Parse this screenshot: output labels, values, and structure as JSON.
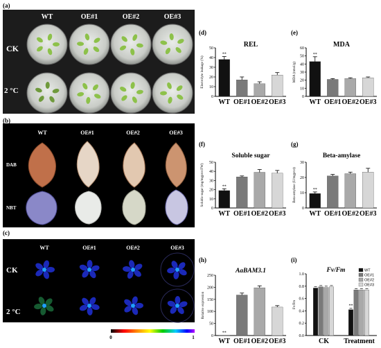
{
  "panels": {
    "a": {
      "label": "(a)",
      "columns": [
        "WT",
        "OE#1",
        "OE#2",
        "OE#3"
      ],
      "rows": [
        "CK",
        "2 °C"
      ]
    },
    "b": {
      "label": "(b)",
      "columns": [
        "WT",
        "OE#1",
        "OE#2",
        "OE#3"
      ],
      "rows": [
        "DAB",
        "NBT"
      ]
    },
    "c": {
      "label": "(c)",
      "columns": [
        "WT",
        "OE#1",
        "OE#2",
        "OE#3"
      ],
      "rows": [
        "CK",
        "2 °C"
      ],
      "colorbar": {
        "min": "0",
        "max": "1"
      }
    }
  },
  "colors": {
    "black": "#111111",
    "dark_gray": "#7a7a7a",
    "mid_gray": "#a9a9a9",
    "light_gray": "#d7d7d7"
  },
  "chart_data": [
    {
      "panel": "(d)",
      "type": "bar",
      "title": "REL",
      "ylabel": "Electrolyte leakage (%)",
      "categories": [
        "WT",
        "OE#1",
        "OE#2",
        "OE#3"
      ],
      "values": [
        38,
        17,
        13,
        22
      ],
      "errors": [
        3,
        3,
        2,
        2.5
      ],
      "annotations": [
        "**",
        "",
        "",
        ""
      ],
      "ylim": [
        0,
        50
      ],
      "yticks": [
        0,
        10,
        20,
        30,
        40,
        50
      ],
      "grid": false
    },
    {
      "panel": "(e)",
      "type": "bar",
      "title": "MDA",
      "ylabel": "MDA (nmol/g)",
      "categories": [
        "WT",
        "OE#1",
        "OE#2",
        "OE#3"
      ],
      "values": [
        43,
        21,
        22,
        23
      ],
      "errors": [
        6,
        1,
        1,
        1
      ],
      "annotations": [
        "**",
        "",
        "",
        ""
      ],
      "ylim": [
        0,
        60
      ],
      "yticks": [
        0,
        10,
        20,
        30,
        40,
        50,
        60
      ],
      "grid": false
    },
    {
      "panel": "(f)",
      "type": "bar",
      "title": "Soluble sugar",
      "ylabel": "Soluble sugar (mg/mgprot FW)",
      "categories": [
        "WT",
        "OE#1",
        "OE#2",
        "OE#3"
      ],
      "values": [
        19,
        34,
        39,
        38
      ],
      "errors": [
        2,
        1,
        3,
        3
      ],
      "annotations": [
        "**",
        "",
        "",
        ""
      ],
      "ylim": [
        0,
        50
      ],
      "yticks": [
        0,
        10,
        20,
        30,
        40,
        50
      ],
      "grid": false
    },
    {
      "panel": "(g)",
      "type": "bar",
      "title": "Beta-amylase",
      "ylabel": "Beta-amylase (U/mgprot)",
      "categories": [
        "WT",
        "OE#1",
        "OE#2",
        "OE#3"
      ],
      "values": [
        9.5,
        21,
        22.5,
        23.5
      ],
      "errors": [
        1,
        1,
        1,
        2.5
      ],
      "annotations": [
        "**",
        "",
        "",
        ""
      ],
      "ylim": [
        0,
        30
      ],
      "yticks": [
        0,
        10,
        20,
        30
      ],
      "grid": false
    },
    {
      "panel": "(h)",
      "type": "bar",
      "title": "AaBAM3.1",
      "ylabel": "Relative expression",
      "categories": [
        "WT",
        "OE#1",
        "OE#2",
        "OE#3"
      ],
      "values": [
        1,
        168,
        198,
        118
      ],
      "errors": [
        0,
        8,
        8,
        6
      ],
      "annotations": [
        "**",
        "",
        "",
        ""
      ],
      "ylim": [
        0,
        250
      ],
      "yticks": [
        0,
        50,
        100,
        150,
        200,
        250
      ],
      "grid": false
    },
    {
      "panel": "(i)",
      "type": "bar",
      "title": "Fv/Fm",
      "ylabel": "Fv/Fm",
      "categories": [
        "CK",
        "Treatment"
      ],
      "series": [
        {
          "name": "WT",
          "values": [
            0.77,
            0.42
          ]
        },
        {
          "name": "OE#1",
          "values": [
            0.79,
            0.74
          ]
        },
        {
          "name": "OE#2",
          "values": [
            0.78,
            0.74
          ]
        },
        {
          "name": "OE#3",
          "values": [
            0.79,
            0.74
          ]
        }
      ],
      "annotations": [
        "",
        "**"
      ],
      "ylim": [
        0,
        1.0
      ],
      "yticks": [
        0.0,
        0.2,
        0.4,
        0.6,
        0.8,
        1.0
      ],
      "legend": "top-right",
      "grid": false
    }
  ]
}
